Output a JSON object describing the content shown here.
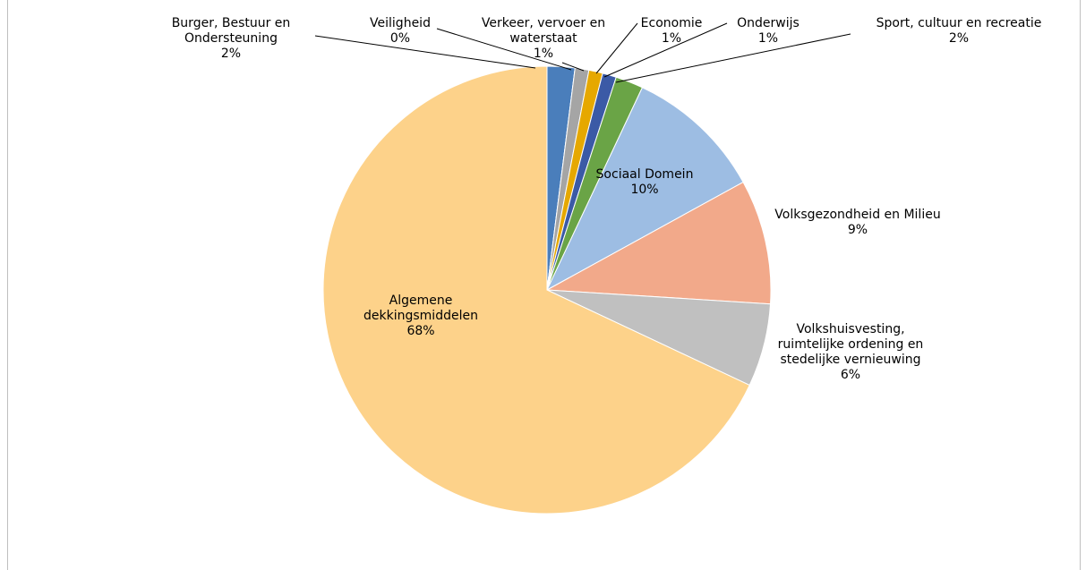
{
  "chart_data": {
    "type": "pie",
    "categories": [
      "Burger, Bestuur en Ondersteuning",
      "Veiligheid",
      "Verkeer, vervoer en waterstaat",
      "Economie",
      "Onderwijs",
      "Sport, cultuur en recreatie",
      "Sociaal Domein",
      "Volksgezondheid en Milieu",
      "Volkshuisvesting, ruimtelijke ordening en stedelijke vernieuwing",
      "Algemene dekkingsmiddelen"
    ],
    "values": [
      2,
      0,
      1,
      1,
      1,
      2,
      10,
      9,
      6,
      68
    ],
    "value_labels": [
      "2%",
      "0%",
      "1%",
      "1%",
      "1%",
      "2%",
      "10%",
      "9%",
      "6%",
      "68%"
    ],
    "colors": [
      "#4a7ebb",
      "#e8773a",
      "#a5a5a5",
      "#e6a800",
      "#3b5aa6",
      "#6aa446",
      "#9dbde3",
      "#f2a98a",
      "#c0c0c0",
      "#fdd28a"
    ]
  }
}
